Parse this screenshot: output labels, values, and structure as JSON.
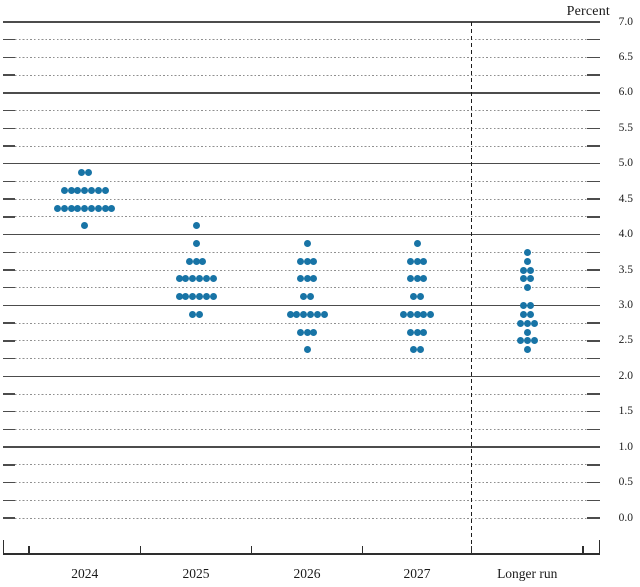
{
  "chart_data": {
    "type": "scatter",
    "variant": "fomc-dot-plot",
    "ylabel": "Percent",
    "ylim": [
      0.0,
      7.0
    ],
    "grid_minor_step": 0.25,
    "ytick_step": 0.5,
    "ytick_labels": [
      "7.0",
      "6.5",
      "6.0",
      "5.5",
      "5.0",
      "4.5",
      "4.0",
      "3.5",
      "3.0",
      "2.5",
      "2.0",
      "1.5",
      "1.0",
      "0.5",
      "0.0"
    ],
    "grid": "dotted-quarters-solid-integers",
    "legend_position": "none",
    "categories": [
      "2024",
      "2025",
      "2026",
      "2027",
      "Longer run"
    ],
    "separator_before_category": "Longer run",
    "dot_color": "#1874a6",
    "series": [
      {
        "category": "2024",
        "dots": [
          {
            "value": 4.875,
            "count": 2
          },
          {
            "value": 4.625,
            "count": 7
          },
          {
            "value": 4.375,
            "count": 9
          },
          {
            "value": 4.125,
            "count": 1
          }
        ]
      },
      {
        "category": "2025",
        "dots": [
          {
            "value": 4.125,
            "count": 1
          },
          {
            "value": 3.875,
            "count": 1
          },
          {
            "value": 3.625,
            "count": 3
          },
          {
            "value": 3.375,
            "count": 6
          },
          {
            "value": 3.125,
            "count": 6
          },
          {
            "value": 2.875,
            "count": 2
          }
        ]
      },
      {
        "category": "2026",
        "dots": [
          {
            "value": 3.875,
            "count": 1
          },
          {
            "value": 3.625,
            "count": 3
          },
          {
            "value": 3.375,
            "count": 3
          },
          {
            "value": 3.125,
            "count": 2
          },
          {
            "value": 2.875,
            "count": 6
          },
          {
            "value": 2.625,
            "count": 3
          },
          {
            "value": 2.375,
            "count": 1
          }
        ]
      },
      {
        "category": "2027",
        "dots": [
          {
            "value": 3.875,
            "count": 1
          },
          {
            "value": 3.625,
            "count": 3
          },
          {
            "value": 3.375,
            "count": 3
          },
          {
            "value": 3.125,
            "count": 2
          },
          {
            "value": 2.875,
            "count": 5
          },
          {
            "value": 2.625,
            "count": 3
          },
          {
            "value": 2.375,
            "count": 2
          }
        ]
      },
      {
        "category": "Longer run",
        "dots": [
          {
            "value": 3.75,
            "count": 1
          },
          {
            "value": 3.625,
            "count": 1
          },
          {
            "value": 3.5,
            "count": 2
          },
          {
            "value": 3.375,
            "count": 2
          },
          {
            "value": 3.25,
            "count": 1
          },
          {
            "value": 3.0,
            "count": 2
          },
          {
            "value": 2.875,
            "count": 2
          },
          {
            "value": 2.75,
            "count": 3
          },
          {
            "value": 2.625,
            "count": 1
          },
          {
            "value": 2.5,
            "count": 3
          },
          {
            "value": 2.375,
            "count": 1
          }
        ]
      }
    ]
  }
}
